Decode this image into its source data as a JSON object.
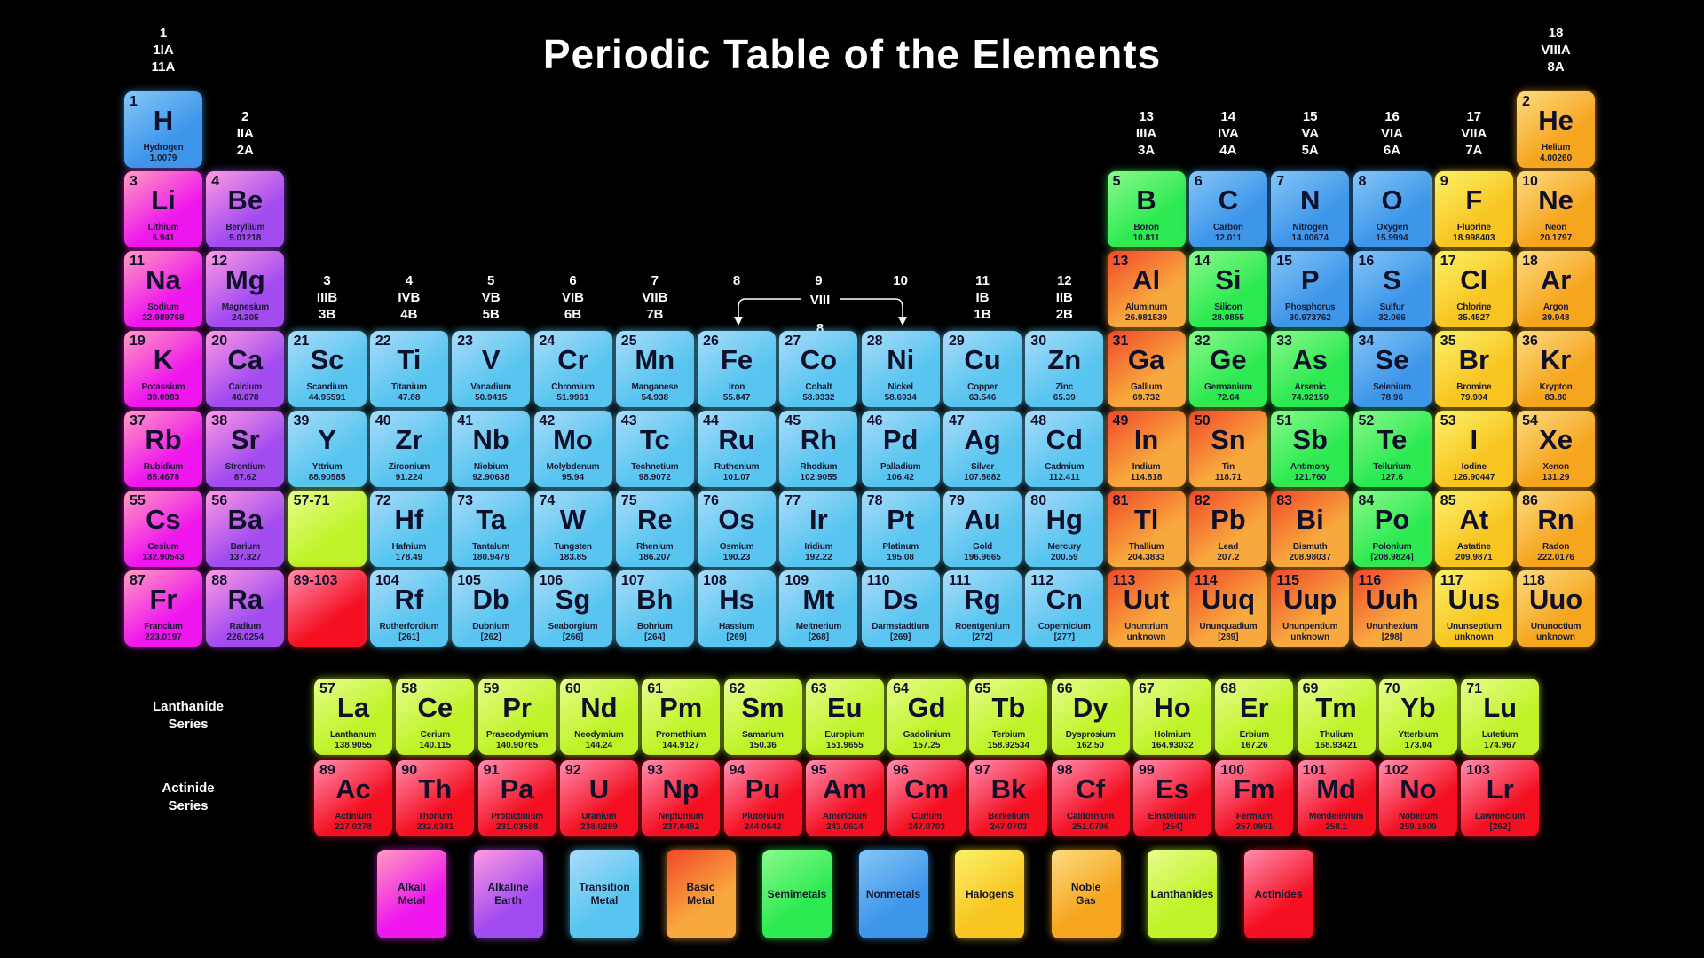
{
  "title": "Periodic Table of the Elements",
  "group_headers": [
    {
      "group": 1,
      "lines": [
        "1",
        "1IA",
        "11A"
      ]
    },
    {
      "group": 2,
      "lines": [
        "2",
        "IIA",
        "2A"
      ]
    },
    {
      "group": 3,
      "lines": [
        "3",
        "IIIB",
        "3B"
      ]
    },
    {
      "group": 4,
      "lines": [
        "4",
        "IVB",
        "4B"
      ]
    },
    {
      "group": 5,
      "lines": [
        "5",
        "VB",
        "5B"
      ]
    },
    {
      "group": 6,
      "lines": [
        "6",
        "VIB",
        "6B"
      ]
    },
    {
      "group": 7,
      "lines": [
        "7",
        "VIIB",
        "7B"
      ]
    },
    {
      "group": 8,
      "lines": [
        "8"
      ]
    },
    {
      "group": 9,
      "lines": [
        "9"
      ]
    },
    {
      "group": 10,
      "lines": [
        "10"
      ]
    },
    {
      "group": 11,
      "lines": [
        "11",
        "IB",
        "1B"
      ]
    },
    {
      "group": 12,
      "lines": [
        "12",
        "IIB",
        "2B"
      ]
    },
    {
      "group": 13,
      "lines": [
        "13",
        "IIIA",
        "3A"
      ]
    },
    {
      "group": 14,
      "lines": [
        "14",
        "IVA",
        "4A"
      ]
    },
    {
      "group": 15,
      "lines": [
        "15",
        "VA",
        "5A"
      ]
    },
    {
      "group": 16,
      "lines": [
        "16",
        "VIA",
        "6A"
      ]
    },
    {
      "group": 17,
      "lines": [
        "17",
        "VIIA",
        "7A"
      ]
    },
    {
      "group": 18,
      "lines": [
        "18",
        "VIIIA",
        "8A"
      ]
    }
  ],
  "viii_bracket": {
    "label": "VIII",
    "below": "8"
  },
  "series_labels": {
    "lanthanide": "Lanthanide\nSeries",
    "actinide": "Actinide\nSeries"
  },
  "colors": {
    "alkali": {
      "light": "#ff9dbe",
      "main": "#ef16ee"
    },
    "alkaline": {
      "light": "#ff9be2",
      "main": "#a24cf0"
    },
    "transition": {
      "light": "#aadcf9",
      "main": "#58c5f0"
    },
    "basic": {
      "light": "#f1472a",
      "main": "#f8a93d"
    },
    "semimetal": {
      "light": "#8bf98b",
      "main": "#2cea51"
    },
    "nonmetal": {
      "light": "#85c6f7",
      "main": "#3e96ea"
    },
    "halogen": {
      "light": "#fbf26a",
      "main": "#f8c521"
    },
    "noble": {
      "light": "#fcdc82",
      "main": "#f6a51e"
    },
    "lanthanide": {
      "light": "#e7fd8d",
      "main": "#bff327"
    },
    "actinide": {
      "light": "#ff8eb0",
      "main": "#f41021"
    }
  },
  "elements": [
    {
      "n": 1,
      "s": "H",
      "name": "Hydrogen",
      "m": "1.0079",
      "c": "nonmetal",
      "p": 1,
      "g": 1
    },
    {
      "n": 2,
      "s": "He",
      "name": "Helium",
      "m": "4.00260",
      "c": "noble",
      "p": 1,
      "g": 18
    },
    {
      "n": 3,
      "s": "Li",
      "name": "Lithium",
      "m": "6.941",
      "c": "alkali",
      "p": 2,
      "g": 1
    },
    {
      "n": 4,
      "s": "Be",
      "name": "Beryllium",
      "m": "9.01218",
      "c": "alkaline",
      "p": 2,
      "g": 2
    },
    {
      "n": 5,
      "s": "B",
      "name": "Boron",
      "m": "10.811",
      "c": "semimetal",
      "p": 2,
      "g": 13
    },
    {
      "n": 6,
      "s": "C",
      "name": "Carbon",
      "m": "12.011",
      "c": "nonmetal",
      "p": 2,
      "g": 14
    },
    {
      "n": 7,
      "s": "N",
      "name": "Nitrogen",
      "m": "14.00674",
      "c": "nonmetal",
      "p": 2,
      "g": 15
    },
    {
      "n": 8,
      "s": "O",
      "name": "Oxygen",
      "m": "15.9994",
      "c": "nonmetal",
      "p": 2,
      "g": 16
    },
    {
      "n": 9,
      "s": "F",
      "name": "Fluorine",
      "m": "18.998403",
      "c": "halogen",
      "p": 2,
      "g": 17
    },
    {
      "n": 10,
      "s": "Ne",
      "name": "Neon",
      "m": "20.1797",
      "c": "noble",
      "p": 2,
      "g": 18
    },
    {
      "n": 11,
      "s": "Na",
      "name": "Sodium",
      "m": "22.989768",
      "c": "alkali",
      "p": 3,
      "g": 1
    },
    {
      "n": 12,
      "s": "Mg",
      "name": "Magnesium",
      "m": "24.305",
      "c": "alkaline",
      "p": 3,
      "g": 2
    },
    {
      "n": 13,
      "s": "Al",
      "name": "Aluminum",
      "m": "26.981539",
      "c": "basic",
      "p": 3,
      "g": 13
    },
    {
      "n": 14,
      "s": "Si",
      "name": "Silicon",
      "m": "28.0855",
      "c": "semimetal",
      "p": 3,
      "g": 14
    },
    {
      "n": 15,
      "s": "P",
      "name": "Phosphorus",
      "m": "30.973762",
      "c": "nonmetal",
      "p": 3,
      "g": 15
    },
    {
      "n": 16,
      "s": "S",
      "name": "Sulfur",
      "m": "32.066",
      "c": "nonmetal",
      "p": 3,
      "g": 16
    },
    {
      "n": 17,
      "s": "Cl",
      "name": "Chlorine",
      "m": "35.4527",
      "c": "halogen",
      "p": 3,
      "g": 17
    },
    {
      "n": 18,
      "s": "Ar",
      "name": "Argon",
      "m": "39.948",
      "c": "noble",
      "p": 3,
      "g": 18
    },
    {
      "n": 19,
      "s": "K",
      "name": "Potassium",
      "m": "39.0983",
      "c": "alkali",
      "p": 4,
      "g": 1
    },
    {
      "n": 20,
      "s": "Ca",
      "name": "Calcium",
      "m": "40.078",
      "c": "alkaline",
      "p": 4,
      "g": 2
    },
    {
      "n": 21,
      "s": "Sc",
      "name": "Scandium",
      "m": "44.95591",
      "c": "transition",
      "p": 4,
      "g": 3
    },
    {
      "n": 22,
      "s": "Ti",
      "name": "Titanium",
      "m": "47.88",
      "c": "transition",
      "p": 4,
      "g": 4
    },
    {
      "n": 23,
      "s": "V",
      "name": "Vanadium",
      "m": "50.9415",
      "c": "transition",
      "p": 4,
      "g": 5
    },
    {
      "n": 24,
      "s": "Cr",
      "name": "Chromium",
      "m": "51.9961",
      "c": "transition",
      "p": 4,
      "g": 6
    },
    {
      "n": 25,
      "s": "Mn",
      "name": "Manganese",
      "m": "54.938",
      "c": "transition",
      "p": 4,
      "g": 7
    },
    {
      "n": 26,
      "s": "Fe",
      "name": "Iron",
      "m": "55.847",
      "c": "transition",
      "p": 4,
      "g": 8
    },
    {
      "n": 27,
      "s": "Co",
      "name": "Cobalt",
      "m": "58.9332",
      "c": "transition",
      "p": 4,
      "g": 9
    },
    {
      "n": 28,
      "s": "Ni",
      "name": "Nickel",
      "m": "58.6934",
      "c": "transition",
      "p": 4,
      "g": 10
    },
    {
      "n": 29,
      "s": "Cu",
      "name": "Copper",
      "m": "63.546",
      "c": "transition",
      "p": 4,
      "g": 11
    },
    {
      "n": 30,
      "s": "Zn",
      "name": "Zinc",
      "m": "65.39",
      "c": "transition",
      "p": 4,
      "g": 12
    },
    {
      "n": 31,
      "s": "Ga",
      "name": "Gallium",
      "m": "69.732",
      "c": "basic",
      "p": 4,
      "g": 13
    },
    {
      "n": 32,
      "s": "Ge",
      "name": "Germanium",
      "m": "72.64",
      "c": "semimetal",
      "p": 4,
      "g": 14
    },
    {
      "n": 33,
      "s": "As",
      "name": "Arsenic",
      "m": "74.92159",
      "c": "semimetal",
      "p": 4,
      "g": 15
    },
    {
      "n": 34,
      "s": "Se",
      "name": "Selenium",
      "m": "78.96",
      "c": "nonmetal",
      "p": 4,
      "g": 16
    },
    {
      "n": 35,
      "s": "Br",
      "name": "Bromine",
      "m": "79.904",
      "c": "halogen",
      "p": 4,
      "g": 17
    },
    {
      "n": 36,
      "s": "Kr",
      "name": "Krypton",
      "m": "83.80",
      "c": "noble",
      "p": 4,
      "g": 18
    },
    {
      "n": 37,
      "s": "Rb",
      "name": "Rubidium",
      "m": "85.4678",
      "c": "alkali",
      "p": 5,
      "g": 1
    },
    {
      "n": 38,
      "s": "Sr",
      "name": "Strontium",
      "m": "87.62",
      "c": "alkaline",
      "p": 5,
      "g": 2
    },
    {
      "n": 39,
      "s": "Y",
      "name": "Yttrium",
      "m": "88.90585",
      "c": "transition",
      "p": 5,
      "g": 3
    },
    {
      "n": 40,
      "s": "Zr",
      "name": "Zirconium",
      "m": "91.224",
      "c": "transition",
      "p": 5,
      "g": 4
    },
    {
      "n": 41,
      "s": "Nb",
      "name": "Niobium",
      "m": "92.90638",
      "c": "transition",
      "p": 5,
      "g": 5
    },
    {
      "n": 42,
      "s": "Mo",
      "name": "Molybdenum",
      "m": "95.94",
      "c": "transition",
      "p": 5,
      "g": 6
    },
    {
      "n": 43,
      "s": "Tc",
      "name": "Technetium",
      "m": "98.9072",
      "c": "transition",
      "p": 5,
      "g": 7
    },
    {
      "n": 44,
      "s": "Ru",
      "name": "Ruthenium",
      "m": "101.07",
      "c": "transition",
      "p": 5,
      "g": 8
    },
    {
      "n": 45,
      "s": "Rh",
      "name": "Rhodium",
      "m": "102.9055",
      "c": "transition",
      "p": 5,
      "g": 9
    },
    {
      "n": 46,
      "s": "Pd",
      "name": "Palladium",
      "m": "106.42",
      "c": "transition",
      "p": 5,
      "g": 10
    },
    {
      "n": 47,
      "s": "Ag",
      "name": "Silver",
      "m": "107.8682",
      "c": "transition",
      "p": 5,
      "g": 11
    },
    {
      "n": 48,
      "s": "Cd",
      "name": "Cadmium",
      "m": "112.411",
      "c": "transition",
      "p": 5,
      "g": 12
    },
    {
      "n": 49,
      "s": "In",
      "name": "Indium",
      "m": "114.818",
      "c": "basic",
      "p": 5,
      "g": 13
    },
    {
      "n": 50,
      "s": "Sn",
      "name": "Tin",
      "m": "118.71",
      "c": "basic",
      "p": 5,
      "g": 14
    },
    {
      "n": 51,
      "s": "Sb",
      "name": "Antimony",
      "m": "121.760",
      "c": "semimetal",
      "p": 5,
      "g": 15
    },
    {
      "n": 52,
      "s": "Te",
      "name": "Tellurium",
      "m": "127.6",
      "c": "semimetal",
      "p": 5,
      "g": 16
    },
    {
      "n": 53,
      "s": "I",
      "name": "Iodine",
      "m": "126.90447",
      "c": "halogen",
      "p": 5,
      "g": 17
    },
    {
      "n": 54,
      "s": "Xe",
      "name": "Xenon",
      "m": "131.29",
      "c": "noble",
      "p": 5,
      "g": 18
    },
    {
      "n": 55,
      "s": "Cs",
      "name": "Cesium",
      "m": "132.90543",
      "c": "alkali",
      "p": 6,
      "g": 1
    },
    {
      "n": 56,
      "s": "Ba",
      "name": "Barium",
      "m": "137.327",
      "c": "alkaline",
      "p": 6,
      "g": 2
    },
    {
      "n": "57-71",
      "s": "",
      "name": "",
      "m": "",
      "c": "lanthanide",
      "p": 6,
      "g": 3,
      "placeholder": true
    },
    {
      "n": 72,
      "s": "Hf",
      "name": "Hafnium",
      "m": "178.49",
      "c": "transition",
      "p": 6,
      "g": 4
    },
    {
      "n": 73,
      "s": "Ta",
      "name": "Tantalum",
      "m": "180.9479",
      "c": "transition",
      "p": 6,
      "g": 5
    },
    {
      "n": 74,
      "s": "W",
      "name": "Tungsten",
      "m": "183.85",
      "c": "transition",
      "p": 6,
      "g": 6
    },
    {
      "n": 75,
      "s": "Re",
      "name": "Rhenium",
      "m": "186.207",
      "c": "transition",
      "p": 6,
      "g": 7
    },
    {
      "n": 76,
      "s": "Os",
      "name": "Osmium",
      "m": "190.23",
      "c": "transition",
      "p": 6,
      "g": 8
    },
    {
      "n": 77,
      "s": "Ir",
      "name": "Iridium",
      "m": "192.22",
      "c": "transition",
      "p": 6,
      "g": 9
    },
    {
      "n": 78,
      "s": "Pt",
      "name": "Platinum",
      "m": "195.08",
      "c": "transition",
      "p": 6,
      "g": 10
    },
    {
      "n": 79,
      "s": "Au",
      "name": "Gold",
      "m": "196.9665",
      "c": "transition",
      "p": 6,
      "g": 11
    },
    {
      "n": 80,
      "s": "Hg",
      "name": "Mercury",
      "m": "200.59",
      "c": "transition",
      "p": 6,
      "g": 12
    },
    {
      "n": 81,
      "s": "Tl",
      "name": "Thallium",
      "m": "204.3833",
      "c": "basic",
      "p": 6,
      "g": 13
    },
    {
      "n": 82,
      "s": "Pb",
      "name": "Lead",
      "m": "207.2",
      "c": "basic",
      "p": 6,
      "g": 14
    },
    {
      "n": 83,
      "s": "Bi",
      "name": "Bismuth",
      "m": "208.98037",
      "c": "basic",
      "p": 6,
      "g": 15
    },
    {
      "n": 84,
      "s": "Po",
      "name": "Polonium",
      "m": "[208.9824]",
      "c": "semimetal",
      "p": 6,
      "g": 16
    },
    {
      "n": 85,
      "s": "At",
      "name": "Astatine",
      "m": "209.9871",
      "c": "halogen",
      "p": 6,
      "g": 17
    },
    {
      "n": 86,
      "s": "Rn",
      "name": "Radon",
      "m": "222.0176",
      "c": "noble",
      "p": 6,
      "g": 18
    },
    {
      "n": 87,
      "s": "Fr",
      "name": "Francium",
      "m": "223.0197",
      "c": "alkali",
      "p": 7,
      "g": 1
    },
    {
      "n": 88,
      "s": "Ra",
      "name": "Radium",
      "m": "226.0254",
      "c": "alkaline",
      "p": 7,
      "g": 2
    },
    {
      "n": "89-103",
      "s": "",
      "name": "",
      "m": "",
      "c": "actinide",
      "p": 7,
      "g": 3,
      "placeholder": true
    },
    {
      "n": 104,
      "s": "Rf",
      "name": "Rutherfordium",
      "m": "[261]",
      "c": "transition",
      "p": 7,
      "g": 4
    },
    {
      "n": 105,
      "s": "Db",
      "name": "Dubnium",
      "m": "[262]",
      "c": "transition",
      "p": 7,
      "g": 5
    },
    {
      "n": 106,
      "s": "Sg",
      "name": "Seaborgium",
      "m": "[266]",
      "c": "transition",
      "p": 7,
      "g": 6
    },
    {
      "n": 107,
      "s": "Bh",
      "name": "Bohrium",
      "m": "[264]",
      "c": "transition",
      "p": 7,
      "g": 7
    },
    {
      "n": 108,
      "s": "Hs",
      "name": "Hassium",
      "m": "[269]",
      "c": "transition",
      "p": 7,
      "g": 8
    },
    {
      "n": 109,
      "s": "Mt",
      "name": "Meitnerium",
      "m": "[268]",
      "c": "transition",
      "p": 7,
      "g": 9
    },
    {
      "n": 110,
      "s": "Ds",
      "name": "Darmstadtium",
      "m": "[269]",
      "c": "transition",
      "p": 7,
      "g": 10
    },
    {
      "n": 111,
      "s": "Rg",
      "name": "Roentgenium",
      "m": "[272]",
      "c": "transition",
      "p": 7,
      "g": 11
    },
    {
      "n": 112,
      "s": "Cn",
      "name": "Copernicium",
      "m": "[277]",
      "c": "transition",
      "p": 7,
      "g": 12
    },
    {
      "n": 113,
      "s": "Uut",
      "name": "Ununtrium",
      "m": "unknown",
      "c": "basic",
      "p": 7,
      "g": 13
    },
    {
      "n": 114,
      "s": "Uuq",
      "name": "Ununquadium",
      "m": "[289]",
      "c": "basic",
      "p": 7,
      "g": 14
    },
    {
      "n": 115,
      "s": "Uup",
      "name": "Ununpentium",
      "m": "unknown",
      "c": "basic",
      "p": 7,
      "g": 15
    },
    {
      "n": 116,
      "s": "Uuh",
      "name": "Ununhexium",
      "m": "[298]",
      "c": "basic",
      "p": 7,
      "g": 16
    },
    {
      "n": 117,
      "s": "Uus",
      "name": "Ununseptium",
      "m": "unknown",
      "c": "halogen",
      "p": 7,
      "g": 17
    },
    {
      "n": 118,
      "s": "Uuo",
      "name": "Ununoctium",
      "m": "unknown",
      "c": "noble",
      "p": 7,
      "g": 18
    }
  ],
  "lanthanide_series": [
    {
      "n": 57,
      "s": "La",
      "name": "Lanthanum",
      "m": "138.9055",
      "c": "lanthanide"
    },
    {
      "n": 58,
      "s": "Ce",
      "name": "Cerium",
      "m": "140.115",
      "c": "lanthanide"
    },
    {
      "n": 59,
      "s": "Pr",
      "name": "Praseodymium",
      "m": "140.90765",
      "c": "lanthanide"
    },
    {
      "n": 60,
      "s": "Nd",
      "name": "Neodymium",
      "m": "144.24",
      "c": "lanthanide"
    },
    {
      "n": 61,
      "s": "Pm",
      "name": "Promethium",
      "m": "144.9127",
      "c": "lanthanide"
    },
    {
      "n": 62,
      "s": "Sm",
      "name": "Samarium",
      "m": "150.36",
      "c": "lanthanide"
    },
    {
      "n": 63,
      "s": "Eu",
      "name": "Europium",
      "m": "151.9655",
      "c": "lanthanide"
    },
    {
      "n": 64,
      "s": "Gd",
      "name": "Gadolinium",
      "m": "157.25",
      "c": "lanthanide"
    },
    {
      "n": 65,
      "s": "Tb",
      "name": "Terbium",
      "m": "158.92534",
      "c": "lanthanide"
    },
    {
      "n": 66,
      "s": "Dy",
      "name": "Dysprosium",
      "m": "162.50",
      "c": "lanthanide"
    },
    {
      "n": 67,
      "s": "Ho",
      "name": "Holmium",
      "m": "164.93032",
      "c": "lanthanide"
    },
    {
      "n": 68,
      "s": "Er",
      "name": "Erbium",
      "m": "167.26",
      "c": "lanthanide"
    },
    {
      "n": 69,
      "s": "Tm",
      "name": "Thulium",
      "m": "168.93421",
      "c": "lanthanide"
    },
    {
      "n": 70,
      "s": "Yb",
      "name": "Ytterbium",
      "m": "173.04",
      "c": "lanthanide"
    },
    {
      "n": 71,
      "s": "Lu",
      "name": "Lutetium",
      "m": "174.967",
      "c": "lanthanide"
    }
  ],
  "actinide_series": [
    {
      "n": 89,
      "s": "Ac",
      "name": "Actinium",
      "m": "227.0278",
      "c": "actinide"
    },
    {
      "n": 90,
      "s": "Th",
      "name": "Thorium",
      "m": "232.0381",
      "c": "actinide"
    },
    {
      "n": 91,
      "s": "Pa",
      "name": "Protactinium",
      "m": "231.03588",
      "c": "actinide"
    },
    {
      "n": 92,
      "s": "U",
      "name": "Uranium",
      "m": "238.0289",
      "c": "actinide"
    },
    {
      "n": 93,
      "s": "Np",
      "name": "Neptunium",
      "m": "237.0482",
      "c": "actinide"
    },
    {
      "n": 94,
      "s": "Pu",
      "name": "Plutonium",
      "m": "244.0642",
      "c": "actinide"
    },
    {
      "n": 95,
      "s": "Am",
      "name": "Americium",
      "m": "243.0614",
      "c": "actinide"
    },
    {
      "n": 96,
      "s": "Cm",
      "name": "Curium",
      "m": "247.0703",
      "c": "actinide"
    },
    {
      "n": 97,
      "s": "Bk",
      "name": "Berkelium",
      "m": "247.0703",
      "c": "actinide"
    },
    {
      "n": 98,
      "s": "Cf",
      "name": "Californium",
      "m": "251.0796",
      "c": "actinide"
    },
    {
      "n": 99,
      "s": "Es",
      "name": "Einsteinium",
      "m": "[254]",
      "c": "actinide"
    },
    {
      "n": 100,
      "s": "Fm",
      "name": "Fermium",
      "m": "257.0951",
      "c": "actinide"
    },
    {
      "n": 101,
      "s": "Md",
      "name": "Mendelevium",
      "m": "258.1",
      "c": "actinide"
    },
    {
      "n": 102,
      "s": "No",
      "name": "Nobelium",
      "m": "259.1009",
      "c": "actinide"
    },
    {
      "n": 103,
      "s": "Lr",
      "name": "Lawrencium",
      "m": "[262]",
      "c": "actinide"
    }
  ],
  "legend": [
    {
      "label": "Alkali\nMetal",
      "c": "alkali"
    },
    {
      "label": "Alkaline\nEarth",
      "c": "alkaline"
    },
    {
      "label": "Transition\nMetal",
      "c": "transition"
    },
    {
      "label": "Basic\nMetal",
      "c": "basic"
    },
    {
      "label": "Semimetals",
      "c": "semimetal"
    },
    {
      "label": "Nonmetals",
      "c": "nonmetal"
    },
    {
      "label": "Halogens",
      "c": "halogen"
    },
    {
      "label": "Noble\nGas",
      "c": "noble"
    },
    {
      "label": "Lanthanides",
      "c": "lanthanide"
    },
    {
      "label": "Actinides",
      "c": "actinide"
    }
  ]
}
